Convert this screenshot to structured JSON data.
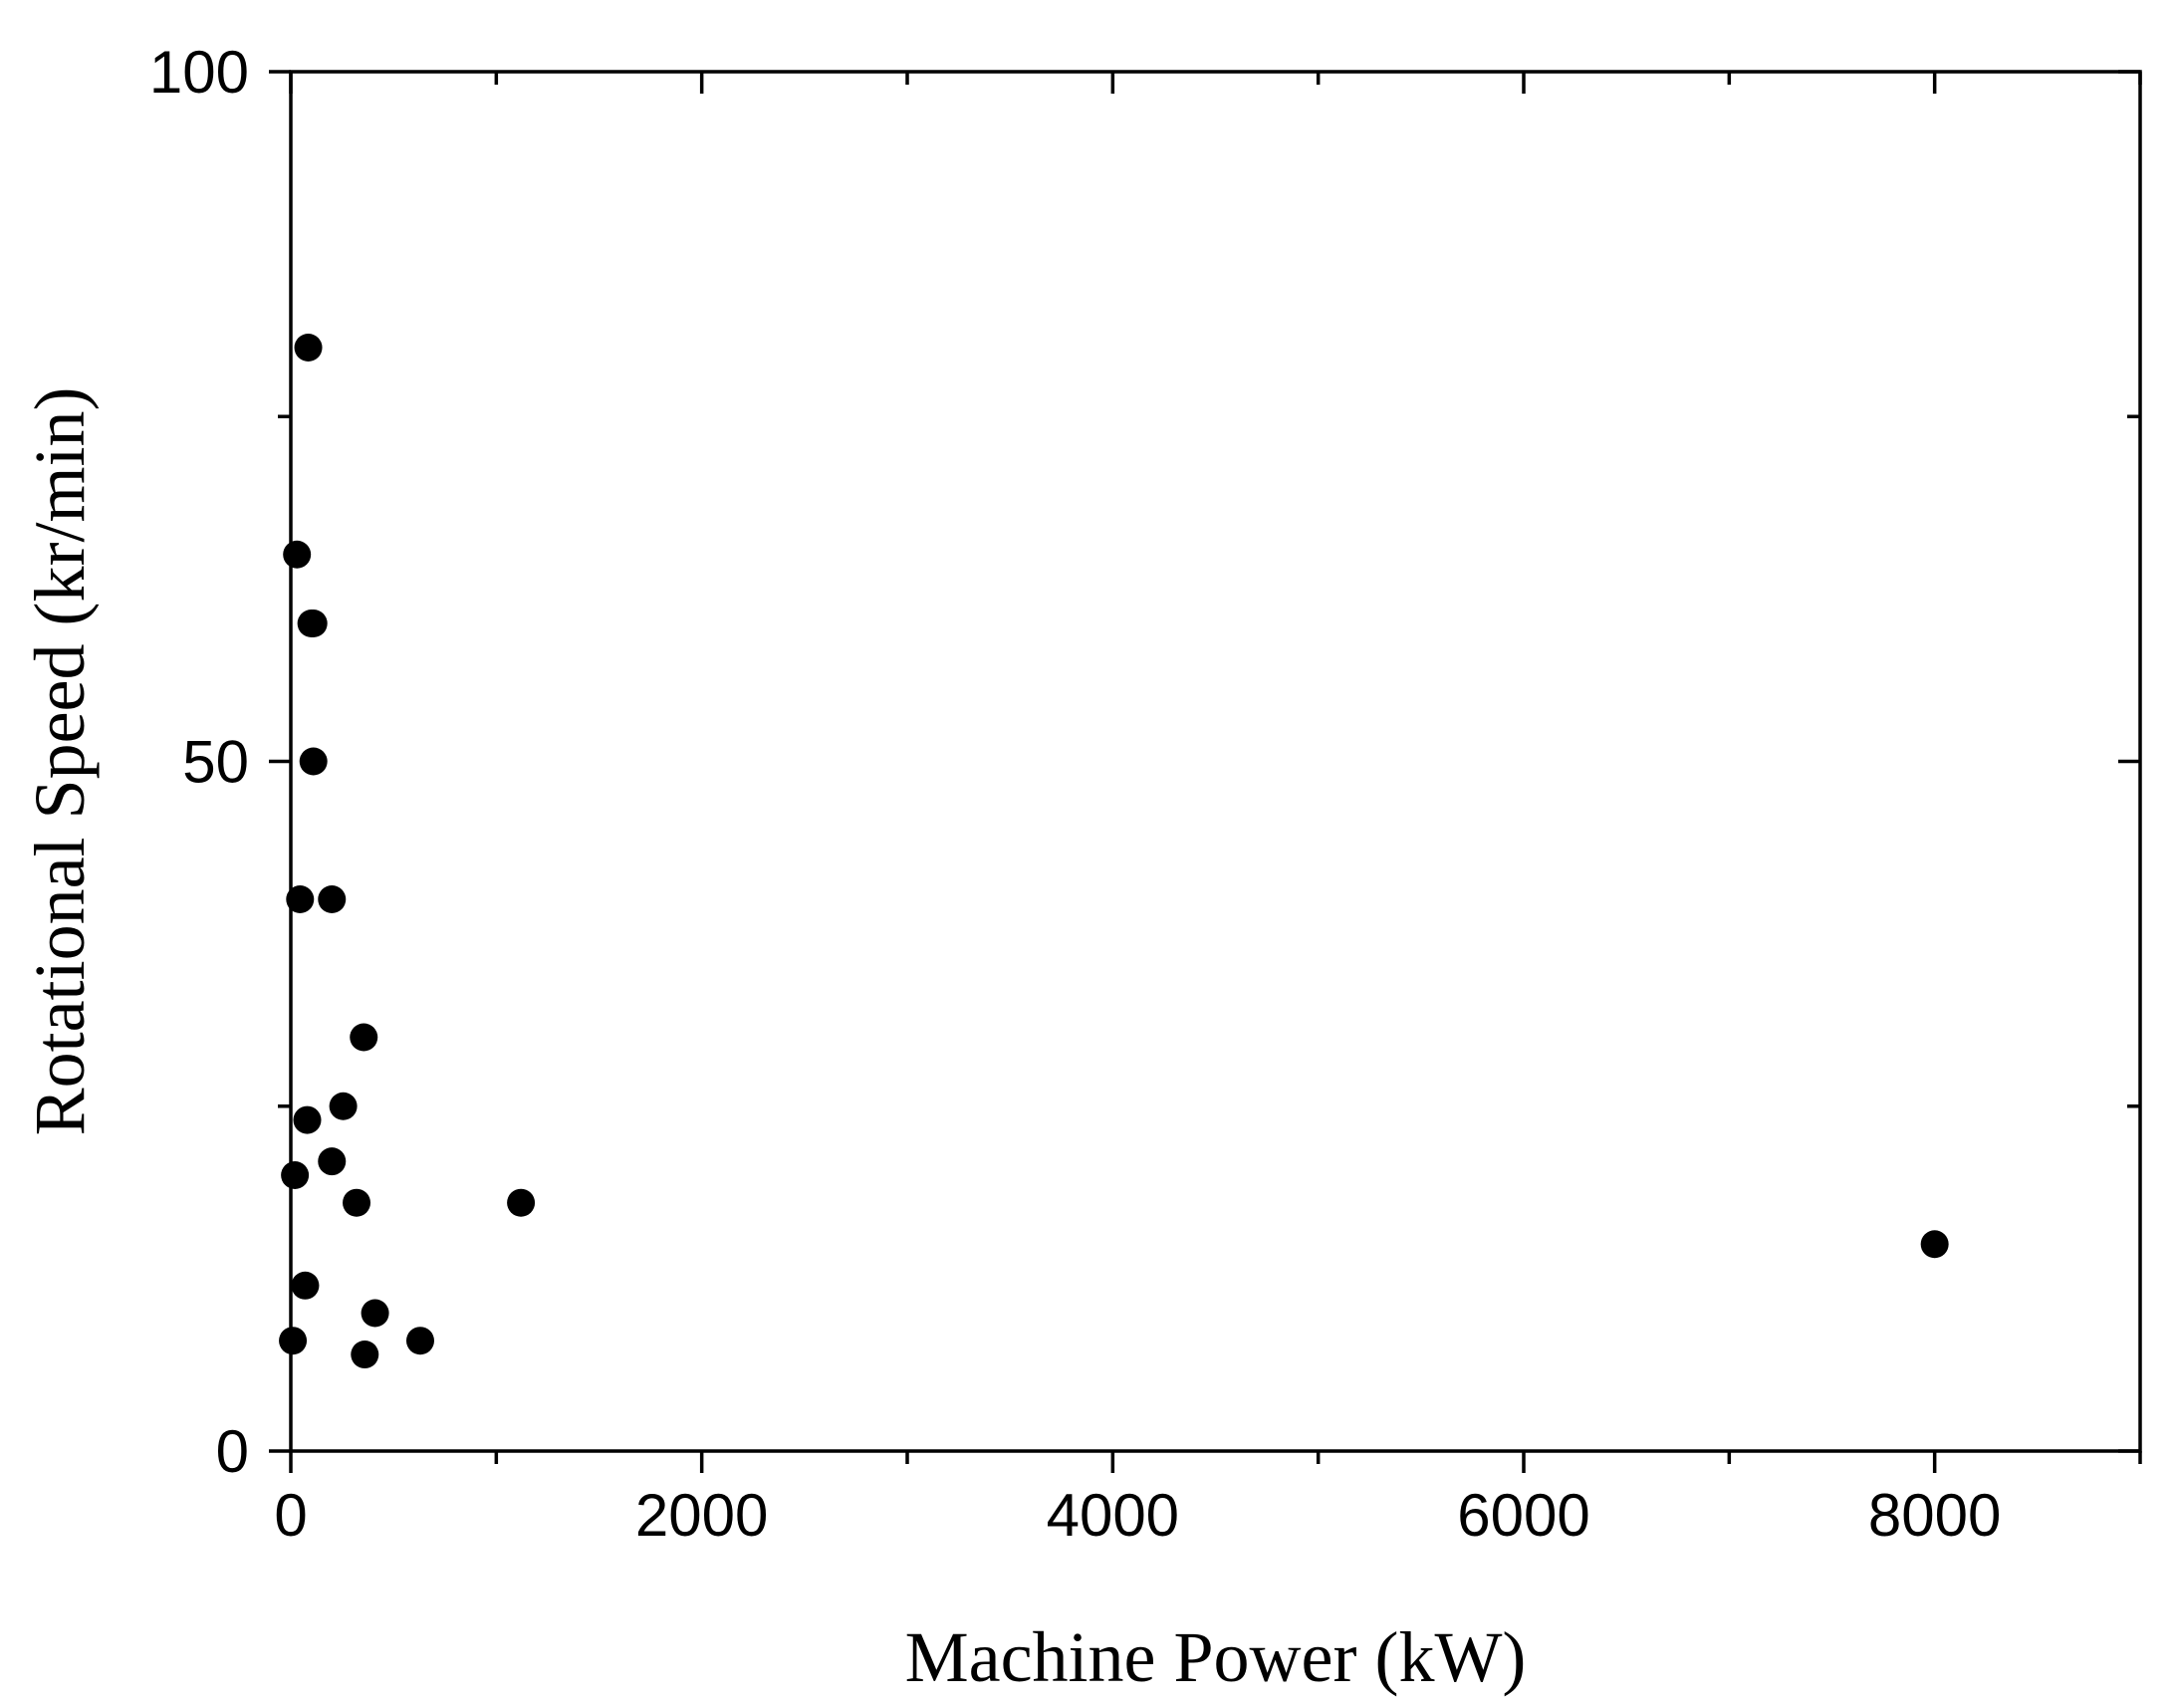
{
  "chart_data": {
    "type": "scatter",
    "title": "",
    "xlabel": "Machine Power (kW)",
    "ylabel": "Rotational Speed (kr/min)",
    "xlim": [
      0,
      9000
    ],
    "ylim": [
      0,
      100
    ],
    "x_major_ticks": [
      0,
      2000,
      4000,
      6000,
      8000
    ],
    "x_minor_ticks": [
      1000,
      3000,
      5000,
      7000,
      9000
    ],
    "y_major_ticks": [
      0,
      50,
      100
    ],
    "y_minor_ticks": [
      25,
      75
    ],
    "x_tick_labels": [
      "0",
      "2000",
      "4000",
      "6000",
      "8000"
    ],
    "y_tick_labels": [
      "0",
      "50",
      "100"
    ],
    "grid": false,
    "legend": "none",
    "marker_color": "#000000",
    "series": [
      {
        "x": [
          85,
          30,
          100,
          110,
          110,
          45,
          200,
          355,
          80,
          255,
          20,
          200,
          320,
          1120,
          8000,
          70,
          410,
          360,
          10,
          630
        ],
        "y": [
          80,
          65,
          60,
          60,
          50,
          40,
          40,
          30,
          24,
          25,
          20,
          21,
          18,
          18,
          15,
          12,
          10,
          7,
          8,
          8
        ]
      }
    ]
  }
}
